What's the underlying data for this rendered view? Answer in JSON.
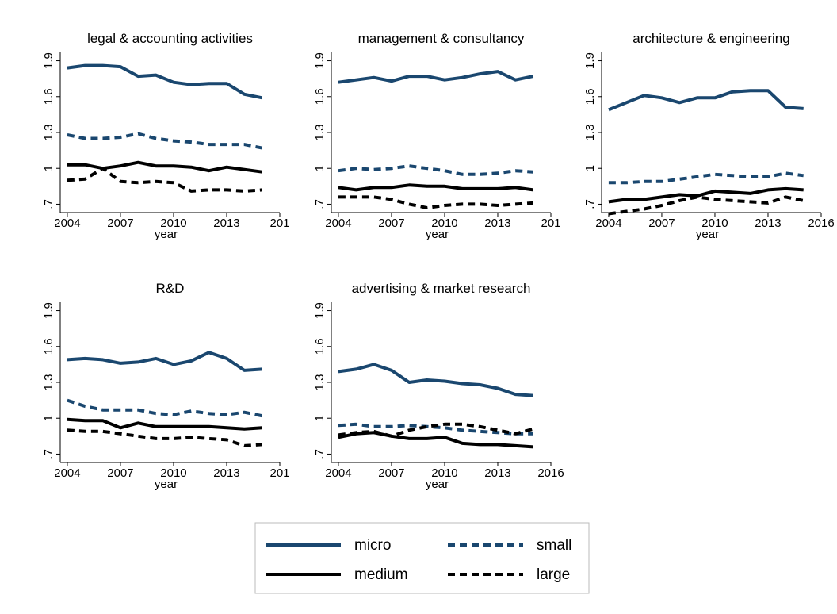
{
  "chart_data": [
    {
      "type": "line",
      "title": "legal & accounting activities",
      "xlabel": "year",
      "x": [
        2004,
        2005,
        2006,
        2007,
        2008,
        2009,
        2010,
        2011,
        2012,
        2013,
        2014,
        2015
      ],
      "xlim": [
        2003.6,
        2016
      ],
      "xticks": [
        2004,
        2007,
        2010,
        2013,
        {
          "value": 2016,
          "label": "201"
        }
      ],
      "ylim": [
        0.63,
        1.97
      ],
      "yticks": [
        {
          "value": 0.7,
          "label": ".7"
        },
        1,
        1.3,
        1.6,
        1.9
      ],
      "series": [
        {
          "name": "micro",
          "color": "#1a476f",
          "style": "solid",
          "values": [
            1.84,
            1.86,
            1.86,
            1.85,
            1.77,
            1.78,
            1.72,
            1.7,
            1.71,
            1.71,
            1.62,
            1.59
          ]
        },
        {
          "name": "small",
          "color": "#1a476f",
          "style": "dash",
          "values": [
            1.28,
            1.25,
            1.25,
            1.26,
            1.29,
            1.25,
            1.23,
            1.22,
            1.2,
            1.2,
            1.2,
            1.17
          ]
        },
        {
          "name": "medium",
          "color": "#000000",
          "style": "solid",
          "values": [
            1.03,
            1.03,
            1.0,
            1.02,
            1.05,
            1.02,
            1.02,
            1.01,
            0.98,
            1.01,
            0.99,
            0.97
          ]
        },
        {
          "name": "large",
          "color": "#000000",
          "style": "dash",
          "values": [
            0.9,
            0.91,
            1.0,
            0.89,
            0.88,
            0.89,
            0.88,
            0.81,
            0.82,
            0.82,
            0.81,
            0.82
          ]
        }
      ]
    },
    {
      "type": "line",
      "title": "management & consultancy",
      "xlabel": "year",
      "x": [
        2004,
        2005,
        2006,
        2007,
        2008,
        2009,
        2010,
        2011,
        2012,
        2013,
        2014,
        2015
      ],
      "xlim": [
        2003.6,
        2016
      ],
      "xticks": [
        2004,
        2007,
        2010,
        2013,
        {
          "value": 2016,
          "label": "201"
        }
      ],
      "ylim": [
        0.63,
        1.97
      ],
      "yticks": [
        {
          "value": 0.7,
          "label": ".7"
        },
        1,
        1.3,
        1.6,
        1.9
      ],
      "series": [
        {
          "name": "micro",
          "color": "#1a476f",
          "style": "solid",
          "values": [
            1.72,
            1.74,
            1.76,
            1.73,
            1.77,
            1.77,
            1.74,
            1.76,
            1.79,
            1.81,
            1.74,
            1.77
          ]
        },
        {
          "name": "small",
          "color": "#1a476f",
          "style": "dash",
          "values": [
            0.98,
            1.0,
            0.99,
            1.0,
            1.02,
            1.0,
            0.98,
            0.95,
            0.95,
            0.96,
            0.98,
            0.97
          ]
        },
        {
          "name": "medium",
          "color": "#000000",
          "style": "solid",
          "values": [
            0.84,
            0.82,
            0.84,
            0.84,
            0.86,
            0.85,
            0.85,
            0.83,
            0.83,
            0.83,
            0.84,
            0.82
          ]
        },
        {
          "name": "large",
          "color": "#000000",
          "style": "dash",
          "values": [
            0.76,
            0.76,
            0.76,
            0.74,
            0.7,
            0.67,
            0.69,
            0.7,
            0.7,
            0.69,
            0.7,
            0.71
          ]
        }
      ]
    },
    {
      "type": "line",
      "title": "architecture & engineering",
      "xlabel": "year",
      "x": [
        2004,
        2005,
        2006,
        2007,
        2008,
        2009,
        2010,
        2011,
        2012,
        2013,
        2014,
        2015
      ],
      "xlim": [
        2003.6,
        2016
      ],
      "xticks": [
        2004,
        2007,
        2010,
        2013,
        2016
      ],
      "ylim": [
        0.63,
        1.97
      ],
      "yticks": [
        {
          "value": 0.7,
          "label": ".7"
        },
        1,
        1.3,
        1.6,
        1.9
      ],
      "series": [
        {
          "name": "micro",
          "color": "#1a476f",
          "style": "solid",
          "values": [
            1.49,
            1.55,
            1.61,
            1.59,
            1.55,
            1.59,
            1.59,
            1.64,
            1.65,
            1.65,
            1.51,
            1.5
          ]
        },
        {
          "name": "small",
          "color": "#1a476f",
          "style": "dash",
          "values": [
            0.88,
            0.88,
            0.89,
            0.89,
            0.91,
            0.93,
            0.95,
            0.94,
            0.93,
            0.93,
            0.96,
            0.94
          ]
        },
        {
          "name": "medium",
          "color": "#000000",
          "style": "solid",
          "values": [
            0.72,
            0.74,
            0.74,
            0.76,
            0.78,
            0.77,
            0.81,
            0.8,
            0.79,
            0.82,
            0.83,
            0.82
          ]
        },
        {
          "name": "large",
          "color": "#000000",
          "style": "dash",
          "values": [
            0.62,
            0.64,
            0.66,
            0.69,
            0.73,
            0.76,
            0.74,
            0.73,
            0.72,
            0.71,
            0.76,
            0.73
          ]
        }
      ]
    },
    {
      "type": "line",
      "title": "R&D",
      "xlabel": "year",
      "x": [
        2004,
        2005,
        2006,
        2007,
        2008,
        2009,
        2010,
        2011,
        2012,
        2013,
        2014,
        2015
      ],
      "xlim": [
        2003.6,
        2016
      ],
      "xticks": [
        2004,
        2007,
        2010,
        2013,
        {
          "value": 2016,
          "label": "201"
        }
      ],
      "ylim": [
        0.63,
        1.97
      ],
      "yticks": [
        {
          "value": 0.7,
          "label": ".7"
        },
        1,
        1.3,
        1.6,
        1.9
      ],
      "series": [
        {
          "name": "micro",
          "color": "#1a476f",
          "style": "solid",
          "values": [
            1.49,
            1.5,
            1.49,
            1.46,
            1.47,
            1.5,
            1.45,
            1.48,
            1.55,
            1.5,
            1.4,
            1.41
          ]
        },
        {
          "name": "small",
          "color": "#1a476f",
          "style": "dash",
          "values": [
            1.15,
            1.1,
            1.07,
            1.07,
            1.07,
            1.04,
            1.03,
            1.06,
            1.04,
            1.03,
            1.05,
            1.02
          ]
        },
        {
          "name": "medium",
          "color": "#000000",
          "style": "solid",
          "values": [
            0.99,
            0.98,
            0.98,
            0.92,
            0.96,
            0.93,
            0.93,
            0.93,
            0.93,
            0.92,
            0.91,
            0.92
          ]
        },
        {
          "name": "large",
          "color": "#000000",
          "style": "dash",
          "values": [
            0.9,
            0.89,
            0.89,
            0.87,
            0.85,
            0.83,
            0.83,
            0.84,
            0.83,
            0.82,
            0.77,
            0.78
          ]
        }
      ]
    },
    {
      "type": "line",
      "title": "advertising & market research",
      "xlabel": "year",
      "x": [
        2004,
        2005,
        2006,
        2007,
        2008,
        2009,
        2010,
        2011,
        2012,
        2013,
        2014,
        2015
      ],
      "xlim": [
        2003.6,
        2016
      ],
      "xticks": [
        2004,
        2007,
        2010,
        2013,
        2016
      ],
      "ylim": [
        0.63,
        1.97
      ],
      "yticks": [
        {
          "value": 0.7,
          "label": ".7"
        },
        1,
        1.3,
        1.6,
        1.9
      ],
      "series": [
        {
          "name": "micro",
          "color": "#1a476f",
          "style": "solid",
          "values": [
            1.39,
            1.41,
            1.45,
            1.4,
            1.3,
            1.32,
            1.31,
            1.29,
            1.28,
            1.25,
            1.2,
            1.19
          ]
        },
        {
          "name": "small",
          "color": "#1a476f",
          "style": "dash",
          "values": [
            0.94,
            0.95,
            0.93,
            0.93,
            0.94,
            0.93,
            0.92,
            0.9,
            0.89,
            0.88,
            0.87,
            0.87
          ]
        },
        {
          "name": "medium",
          "color": "#000000",
          "style": "solid",
          "values": [
            0.84,
            0.87,
            0.88,
            0.85,
            0.83,
            0.83,
            0.84,
            0.79,
            0.78,
            0.78,
            0.77,
            0.76
          ]
        },
        {
          "name": "large",
          "color": "#000000",
          "style": "dash",
          "values": [
            0.86,
            0.88,
            0.89,
            0.85,
            0.9,
            0.93,
            0.95,
            0.95,
            0.93,
            0.9,
            0.87,
            0.91
          ]
        }
      ]
    }
  ]
}
